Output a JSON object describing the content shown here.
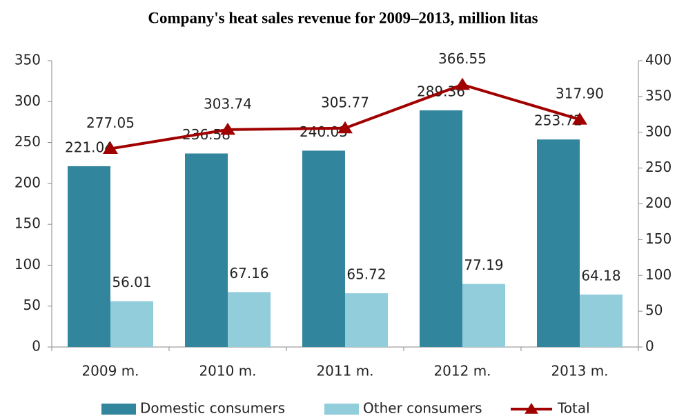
{
  "chart_data": {
    "type": "bar",
    "title": "Company's heat sales revenue for 2009–2013, million litas",
    "categories": [
      "2009 m.",
      "2010 m.",
      "2011 m.",
      "2012 m.",
      "2013 m."
    ],
    "series": [
      {
        "name": "Domestic consumers",
        "color": "#31859c",
        "values": [
          221.04,
          236.58,
          240.05,
          289.36,
          253.72
        ]
      },
      {
        "name": "Other consumers",
        "color": "#92cddc",
        "values": [
          56.01,
          67.16,
          65.72,
          77.19,
          64.18
        ]
      },
      {
        "name": "Total",
        "color": "#a00000",
        "type": "line",
        "axis": "y2",
        "values": [
          277.05,
          303.74,
          305.77,
          366.55,
          317.9
        ],
        "value_labels": [
          "277.05",
          "303.74",
          "305.77",
          "366.55",
          "317.90"
        ]
      }
    ],
    "ylim": [
      0,
      350
    ],
    "yticks": [
      0,
      50,
      100,
      150,
      200,
      250,
      300,
      350
    ],
    "y2lim": [
      0,
      400
    ],
    "y2ticks": [
      0,
      50,
      100,
      150,
      200,
      250,
      300,
      350,
      400
    ],
    "grid": false,
    "legend": "bottom"
  }
}
